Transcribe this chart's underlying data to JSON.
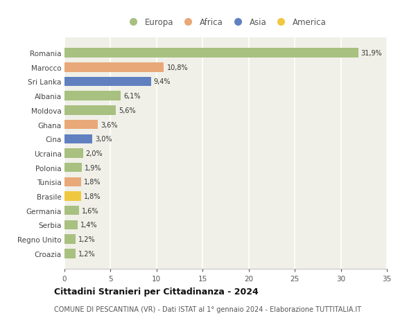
{
  "countries": [
    "Romania",
    "Marocco",
    "Sri Lanka",
    "Albania",
    "Moldova",
    "Ghana",
    "Cina",
    "Ucraina",
    "Polonia",
    "Tunisia",
    "Brasile",
    "Germania",
    "Serbia",
    "Regno Unito",
    "Croazia"
  ],
  "values": [
    31.9,
    10.8,
    9.4,
    6.1,
    5.6,
    3.6,
    3.0,
    2.0,
    1.9,
    1.8,
    1.8,
    1.6,
    1.4,
    1.2,
    1.2
  ],
  "labels": [
    "31,9%",
    "10,8%",
    "9,4%",
    "6,1%",
    "5,6%",
    "3,6%",
    "3,0%",
    "2,0%",
    "1,9%",
    "1,8%",
    "1,8%",
    "1,6%",
    "1,4%",
    "1,2%",
    "1,2%"
  ],
  "continents": [
    "Europa",
    "Africa",
    "Asia",
    "Europa",
    "Europa",
    "Africa",
    "Asia",
    "Europa",
    "Europa",
    "Africa",
    "America",
    "Europa",
    "Europa",
    "Europa",
    "Europa"
  ],
  "continent_colors": {
    "Europa": "#a8c080",
    "Africa": "#e8a878",
    "Asia": "#6080c0",
    "America": "#f0c840"
  },
  "legend_order": [
    "Europa",
    "Africa",
    "Asia",
    "America"
  ],
  "title": "Cittadini Stranieri per Cittadinanza - 2024",
  "subtitle": "COMUNE DI PESCANTINA (VR) - Dati ISTAT al 1° gennaio 2024 - Elaborazione TUTTITALIA.IT",
  "xlim": [
    0,
    35
  ],
  "xticks": [
    0,
    5,
    10,
    15,
    20,
    25,
    30,
    35
  ],
  "figure_bg": "#ffffff",
  "axes_bg": "#f0f0e8",
  "grid_color": "#ffffff",
  "bar_height": 0.65,
  "label_fontsize": 7,
  "ytick_fontsize": 7.5,
  "xtick_fontsize": 7.5,
  "title_fontsize": 9,
  "subtitle_fontsize": 7
}
